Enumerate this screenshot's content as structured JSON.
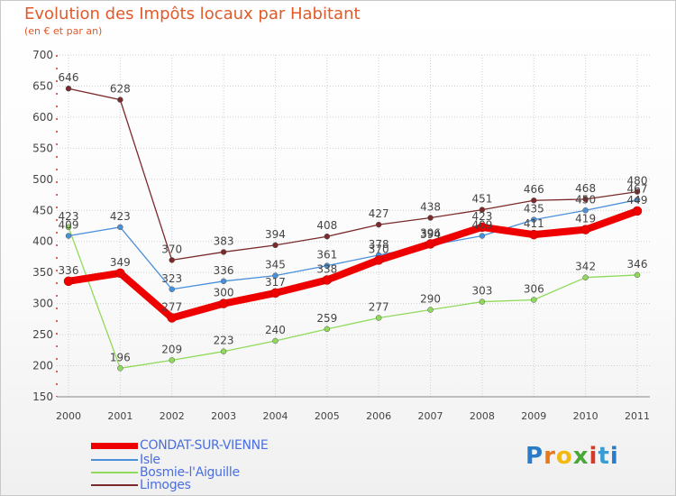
{
  "title": "Evolution des Impôts locaux par Habitant",
  "subtitle": "(en € et par an)",
  "logo_text": "Proxiti",
  "colors": {
    "title": "#e05a2b",
    "legend_text": "#4a6ee0",
    "grid": "#d0d0d0"
  },
  "chart_data": {
    "type": "line",
    "x": [
      "2000",
      "2001",
      "2002",
      "2003",
      "2004",
      "2005",
      "2006",
      "2007",
      "2008",
      "2009",
      "2010",
      "2011"
    ],
    "ylim": [
      150,
      700
    ],
    "yticks": [
      150,
      200,
      250,
      300,
      350,
      400,
      450,
      500,
      550,
      600,
      650,
      700
    ],
    "grid": true,
    "legend_position": "bottom-left",
    "series": [
      {
        "name": "CONDAT-SUR-VIENNE",
        "color": "#ee0000",
        "values": [
          336,
          349,
          277,
          300,
          317,
          338,
          370,
          396,
          423,
          411,
          419,
          449
        ]
      },
      {
        "name": "Isle",
        "color": "#4a90d9",
        "values": [
          409,
          423,
          323,
          336,
          345,
          361,
          378,
          394,
          409,
          435,
          450,
          467
        ]
      },
      {
        "name": "Bosmie-l'Aiguille",
        "color": "#8fda5a",
        "values": [
          423,
          196,
          209,
          223,
          240,
          259,
          277,
          290,
          303,
          306,
          342,
          346
        ]
      },
      {
        "name": "Limoges",
        "color": "#7a2a2a",
        "values": [
          646,
          628,
          370,
          383,
          394,
          408,
          427,
          438,
          451,
          466,
          468,
          480
        ]
      }
    ]
  }
}
